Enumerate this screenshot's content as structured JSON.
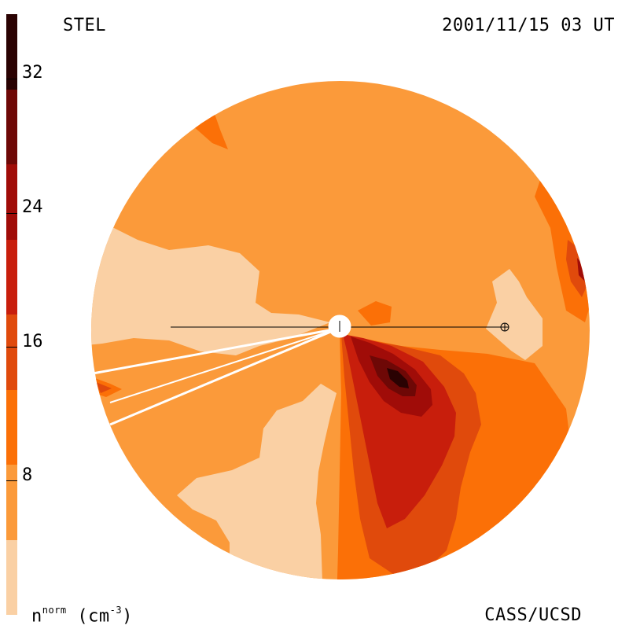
{
  "header": {
    "source": "STEL",
    "timestamp": "2001/11/15 03 UT"
  },
  "footer": {
    "credit": "CASS/UCSD",
    "unit_base": "n",
    "unit_super": "norm",
    "unit_rest": " (cm",
    "unit_exp": "-3",
    "unit_close": ")"
  },
  "colorbar": {
    "ticks": [
      "32",
      "24",
      "16",
      "8"
    ],
    "tick_values": [
      32,
      24,
      16,
      8
    ],
    "range": [
      0,
      36
    ],
    "colors": [
      "#fad0a4",
      "#fb9a3a",
      "#fb7007",
      "#e04a0c",
      "#c81e0c",
      "#a00c08",
      "#6e0806",
      "#2a0202"
    ]
  },
  "map": {
    "observer_marker": "earth-symbol",
    "sun_marker": "sun-disk"
  }
}
